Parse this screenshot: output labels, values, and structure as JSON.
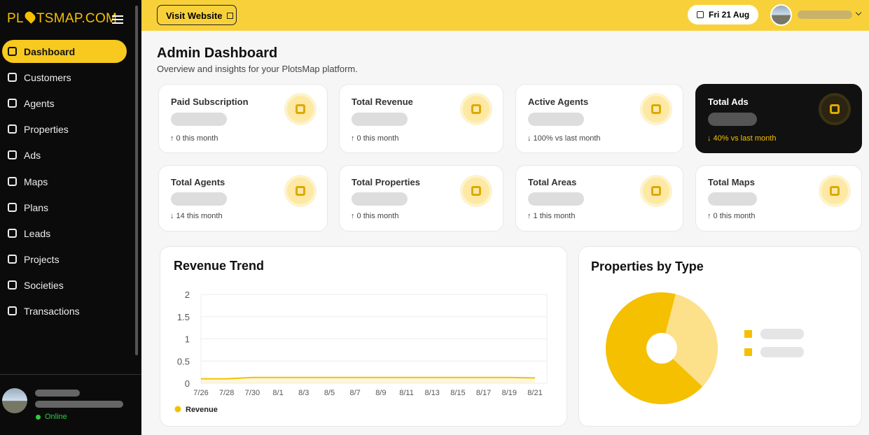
{
  "brand": {
    "left": "PL",
    "right": "TSMAP.COM"
  },
  "nav": [
    "Dashboard",
    "Customers",
    "Agents",
    "Properties",
    "Ads",
    "Maps",
    "Plans",
    "Leads",
    "Projects",
    "Societies",
    "Transactions"
  ],
  "user_status": "Online",
  "topbar": {
    "visit": "Visit Website",
    "date": "Fri 21 Aug"
  },
  "header": {
    "title": "Admin Dashboard",
    "subtitle": "Overview and insights for your PlotsMap platform."
  },
  "stats": [
    {
      "label": "Paid Subscription",
      "change": "↑ 0 this month"
    },
    {
      "label": "Total Revenue",
      "change": "↑ 0 this month"
    },
    {
      "label": "Active Agents",
      "change": "↓ 100% vs last month"
    },
    {
      "label": "Total Ads",
      "change": "↓ 40% vs last month"
    },
    {
      "label": "Total Agents",
      "change": "↓ 14 this month"
    },
    {
      "label": "Total Properties",
      "change": "↑ 0 this month"
    },
    {
      "label": "Total Areas",
      "change": "↑ 1 this month"
    },
    {
      "label": "Total Maps",
      "change": "↑ 0 this month"
    }
  ],
  "chart_data": [
    {
      "type": "line",
      "title": "Revenue Trend",
      "categories": [
        "7/26",
        "7/28",
        "7/30",
        "8/1",
        "8/3",
        "8/5",
        "8/7",
        "8/9",
        "8/11",
        "8/13",
        "8/15",
        "8/17",
        "8/19",
        "8/21"
      ],
      "series": [
        {
          "name": "Revenue",
          "color": "#f5c000",
          "values": [
            0.1,
            0.1,
            0.13,
            0.13,
            0.13,
            0.13,
            0.13,
            0.13,
            0.13,
            0.13,
            0.13,
            0.13,
            0.13,
            0.12
          ]
        }
      ],
      "ylim": [
        0,
        2
      ],
      "yticks": [
        0,
        0.5,
        1,
        1.5,
        2
      ],
      "grid": true
    },
    {
      "type": "pie",
      "title": "Properties by Type",
      "categories": [
        null,
        null
      ],
      "values": [
        67,
        33
      ],
      "colors": [
        "#f5c000",
        "#fde08a"
      ]
    }
  ]
}
